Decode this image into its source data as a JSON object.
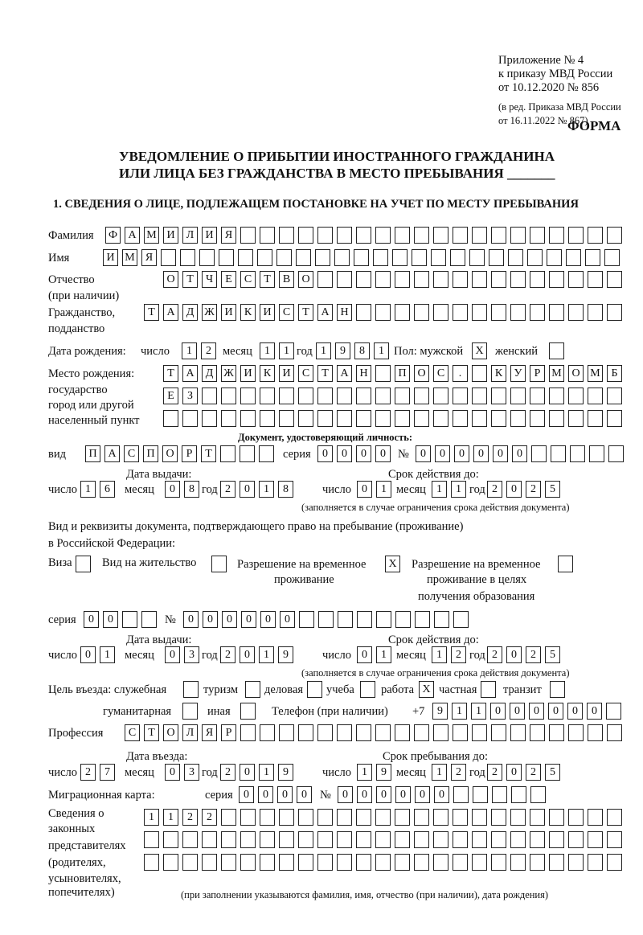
{
  "header": {
    "appendix": "Приложение № 4",
    "order": "к приказу МВД России",
    "order_date": "от 10.12.2020 № 856",
    "edition": "(в ред. Приказа МВД России",
    "edition_date": "от 16.11.2022 № 867)",
    "form_label": "ФОРМА",
    "title_line1": "УВЕДОМЛЕНИЕ О ПРИБЫТИИ ИНОСТРАННОГО ГРАЖДАНИНА",
    "title_line2": "ИЛИ ЛИЦА БЕЗ ГРАЖДАНСТВА В МЕСТО ПРЕБЫВАНИЯ _______",
    "section1": "1. СВЕДЕНИЯ О ЛИЦЕ, ПОДЛЕЖАЩЕМ ПОСТАНОВКЕ НА УЧЕТ ПО МЕСТУ ПРЕБЫВАНИЯ"
  },
  "labels": {
    "surname": "Фамилия",
    "name": "Имя",
    "patronymic": "Отчество",
    "patronymic_note": "(при наличии)",
    "citizenship": "Гражданство,",
    "citizenship2": "подданство",
    "birth_date": "Дата рождения:",
    "day": "число",
    "month": "месяц",
    "year": "год",
    "sex": "Пол: мужской",
    "female": "женский",
    "birthplace": "Место рождения:",
    "bp2": "государство",
    "bp3": "город или другой",
    "bp4": "населенный пункт",
    "id_doc": "Документ, удостоверяющий личность:",
    "kind": "вид",
    "series": "серия",
    "number": "№",
    "issue_date": "Дата выдачи:",
    "valid_until": "Срок действия до:",
    "validity_note": "(заполняется в случае ограничения срока действия документа)",
    "stay_doc": "Вид и реквизиты документа, подтверждающего право на пребывание (проживание)",
    "stay_doc2": "в Российской Федерации:",
    "visa": "Виза",
    "residence": "Вид на жительство",
    "trp": "Разрешение на временное",
    "trp2": "проживание",
    "trp_edu": "Разрешение на временное",
    "trp_edu2": "проживание в целях",
    "trp_edu3": "получения образования",
    "purpose": "Цель въезда: служебная",
    "tourism": "туризм",
    "business": "деловая",
    "study": "учеба",
    "work": "работа",
    "private": "частная",
    "transit": "транзит",
    "humanitarian": "гуманитарная",
    "other": "иная",
    "phone": "Телефон (при наличии)",
    "phone_prefix": "+7",
    "profession": "Профессия",
    "entry_date": "Дата въезда:",
    "stay_until": "Срок пребывания до:",
    "migration_card": "Миграционная карта:",
    "reps1": "Сведения о",
    "reps2": "законных",
    "reps3": "представителях",
    "reps4": "(родителях,",
    "reps5": "усыновителях,",
    "reps6": "попечителях)",
    "reps_note": "(при заполнении указываются фамилия, имя, отчество (при наличии), дата рождения)"
  },
  "values": {
    "surname": "ФАМИЛИЯ",
    "name": "ИМЯ",
    "patronymic": "ОТЧЕСТВО",
    "citizenship": "ТАДЖИКИСТАН",
    "birth_day": "12",
    "birth_month": "11",
    "birth_year": "1981",
    "sex_male": "X",
    "sex_female": "",
    "birthplace1": "ТАДЖИКИСТАН ПОС. КУРМОМБ",
    "birthplace2": "ЕЗ",
    "birthplace3": "",
    "doc_kind": "ПАСПОРТ",
    "doc_series": "0000",
    "doc_number": "000000",
    "doc_issue_day": "16",
    "doc_issue_month": "08",
    "doc_issue_year": "2018",
    "doc_valid_day": "01",
    "doc_valid_month": "11",
    "doc_valid_year": "2025",
    "visa": "",
    "residence": "",
    "trp": "X",
    "trp_edu": "",
    "stay_series": "00",
    "stay_number": "000000",
    "stay_issue_day": "01",
    "stay_issue_month": "03",
    "stay_issue_year": "2019",
    "stay_valid_day": "01",
    "stay_valid_month": "12",
    "stay_valid_year": "2025",
    "purpose_service": "",
    "purpose_tourism": "",
    "purpose_business": "",
    "purpose_study": "",
    "purpose_work": "X",
    "purpose_private": "",
    "purpose_transit": "",
    "purpose_humanitarian": "",
    "purpose_other": "",
    "phone": "911000000",
    "profession": "СТОЛЯР",
    "entry_day": "27",
    "entry_month": "03",
    "entry_year": "2019",
    "stay_until_day": "19",
    "stay_until_month": "12",
    "stay_until_year": "2025",
    "mc_series": "0000",
    "mc_number": "000000",
    "reps1": "1122",
    "reps2": "",
    "reps3": ""
  }
}
